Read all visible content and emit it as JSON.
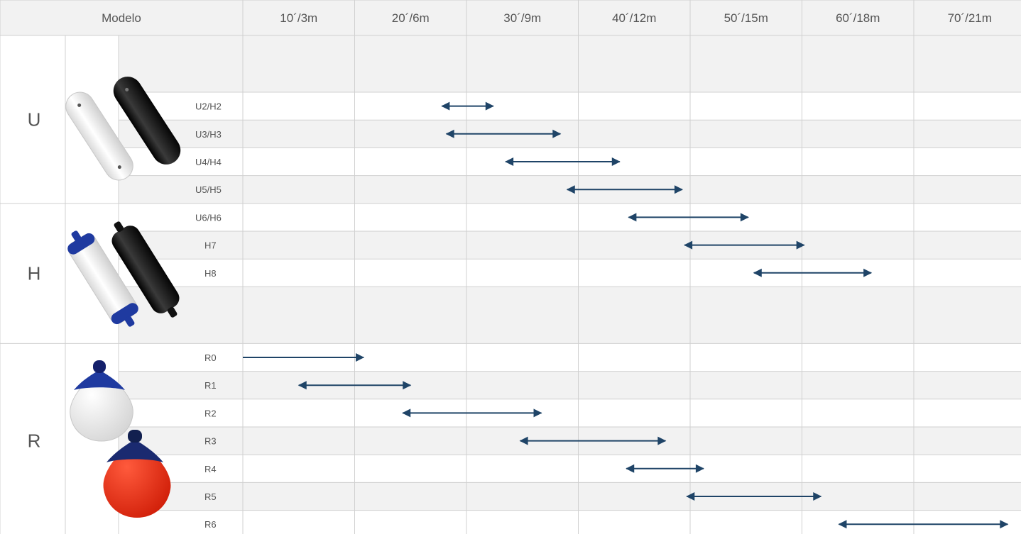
{
  "chart_data": {
    "type": "range-bar",
    "header": "Modelo",
    "columns": [
      "10´/3m",
      "20´/6m",
      "30´/9m",
      "40´/12m",
      "50´/15m",
      "60´/18m",
      "70´/21m"
    ],
    "groups": [
      {
        "name": "U",
        "image": "white-and-black-cylindrical-fenders",
        "rows": [
          {
            "label": "",
            "range": null,
            "arrows": "none"
          },
          {
            "label": "U2/H2",
            "range": [
              2.78,
              3.24
            ],
            "arrows": "both"
          },
          {
            "label": "U3/H3",
            "range": [
              2.82,
              3.84
            ],
            "arrows": "both"
          },
          {
            "label": "U4/H4",
            "range": [
              3.35,
              4.37
            ],
            "arrows": "both"
          },
          {
            "label": "U5/H5",
            "range": [
              3.9,
              4.93
            ],
            "arrows": "both"
          }
        ]
      },
      {
        "name": "H",
        "image": "white-and-black-fenders-with-blue-ends",
        "rows": [
          {
            "label": "U6/H6",
            "range": [
              4.45,
              5.52
            ],
            "arrows": "both"
          },
          {
            "label": "H7",
            "range": [
              4.95,
              6.02
            ],
            "arrows": "both"
          },
          {
            "label": "H8",
            "range": [
              5.57,
              6.62
            ],
            "arrows": "both"
          },
          {
            "label": "",
            "range": null,
            "arrows": "none"
          }
        ]
      },
      {
        "name": "R",
        "image": "white-and-red-round-buoys",
        "rows": [
          {
            "label": "R0",
            "range": [
              1.0,
              2.08
            ],
            "arrows": "right"
          },
          {
            "label": "R1",
            "range": [
              1.5,
              2.5
            ],
            "arrows": "both"
          },
          {
            "label": "R2",
            "range": [
              2.43,
              3.67
            ],
            "arrows": "both"
          },
          {
            "label": "R3",
            "range": [
              3.48,
              4.78
            ],
            "arrows": "both"
          },
          {
            "label": "R4",
            "range": [
              4.43,
              5.12
            ],
            "arrows": "both"
          },
          {
            "label": "R5",
            "range": [
              4.97,
              6.17
            ],
            "arrows": "both"
          },
          {
            "label": "R6",
            "range": [
              6.33,
              7.84
            ],
            "arrows": "both"
          }
        ]
      }
    ],
    "arrow_color": "#1f4467",
    "grid": true
  }
}
